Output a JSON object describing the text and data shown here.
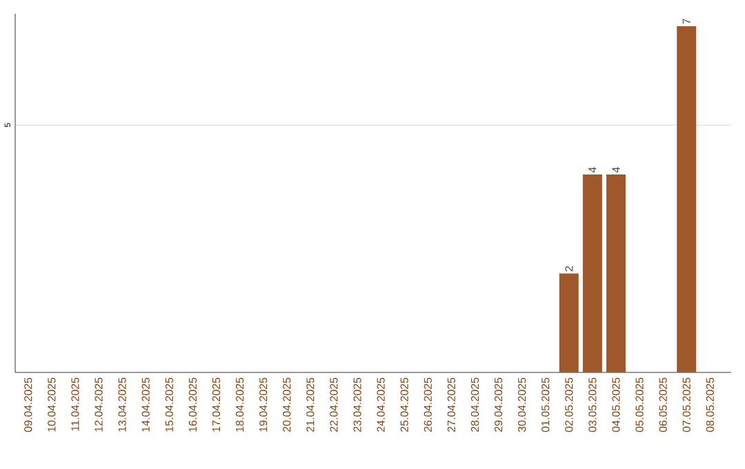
{
  "chart_data": {
    "type": "bar",
    "categories": [
      "09.04.2025",
      "10.04.2025",
      "11.04.2025",
      "12.04.2025",
      "13.04.2025",
      "14.04.2025",
      "15.04.2025",
      "16.04.2025",
      "17.04.2025",
      "18.04.2025",
      "19.04.2025",
      "20.04.2025",
      "21.04.2025",
      "22.04.2025",
      "23.04.2025",
      "24.04.2025",
      "25.04.2025",
      "26.04.2025",
      "27.04.2025",
      "28.04.2025",
      "29.04.2025",
      "30.04.2025",
      "01.05.2025",
      "02.05.2025",
      "03.05.2025",
      "04.05.2025",
      "05.05.2025",
      "06.05.2025",
      "07.05.2025",
      "08.05.2025"
    ],
    "values": [
      null,
      null,
      null,
      null,
      null,
      null,
      null,
      null,
      null,
      null,
      null,
      null,
      null,
      null,
      null,
      null,
      null,
      null,
      null,
      null,
      null,
      null,
      null,
      2,
      4,
      4,
      null,
      null,
      7,
      null
    ],
    "color": "#a0582a",
    "ylim": [
      0,
      7.25
    ],
    "yticks": [
      5
    ],
    "grid": "y",
    "data_labels": true
  }
}
